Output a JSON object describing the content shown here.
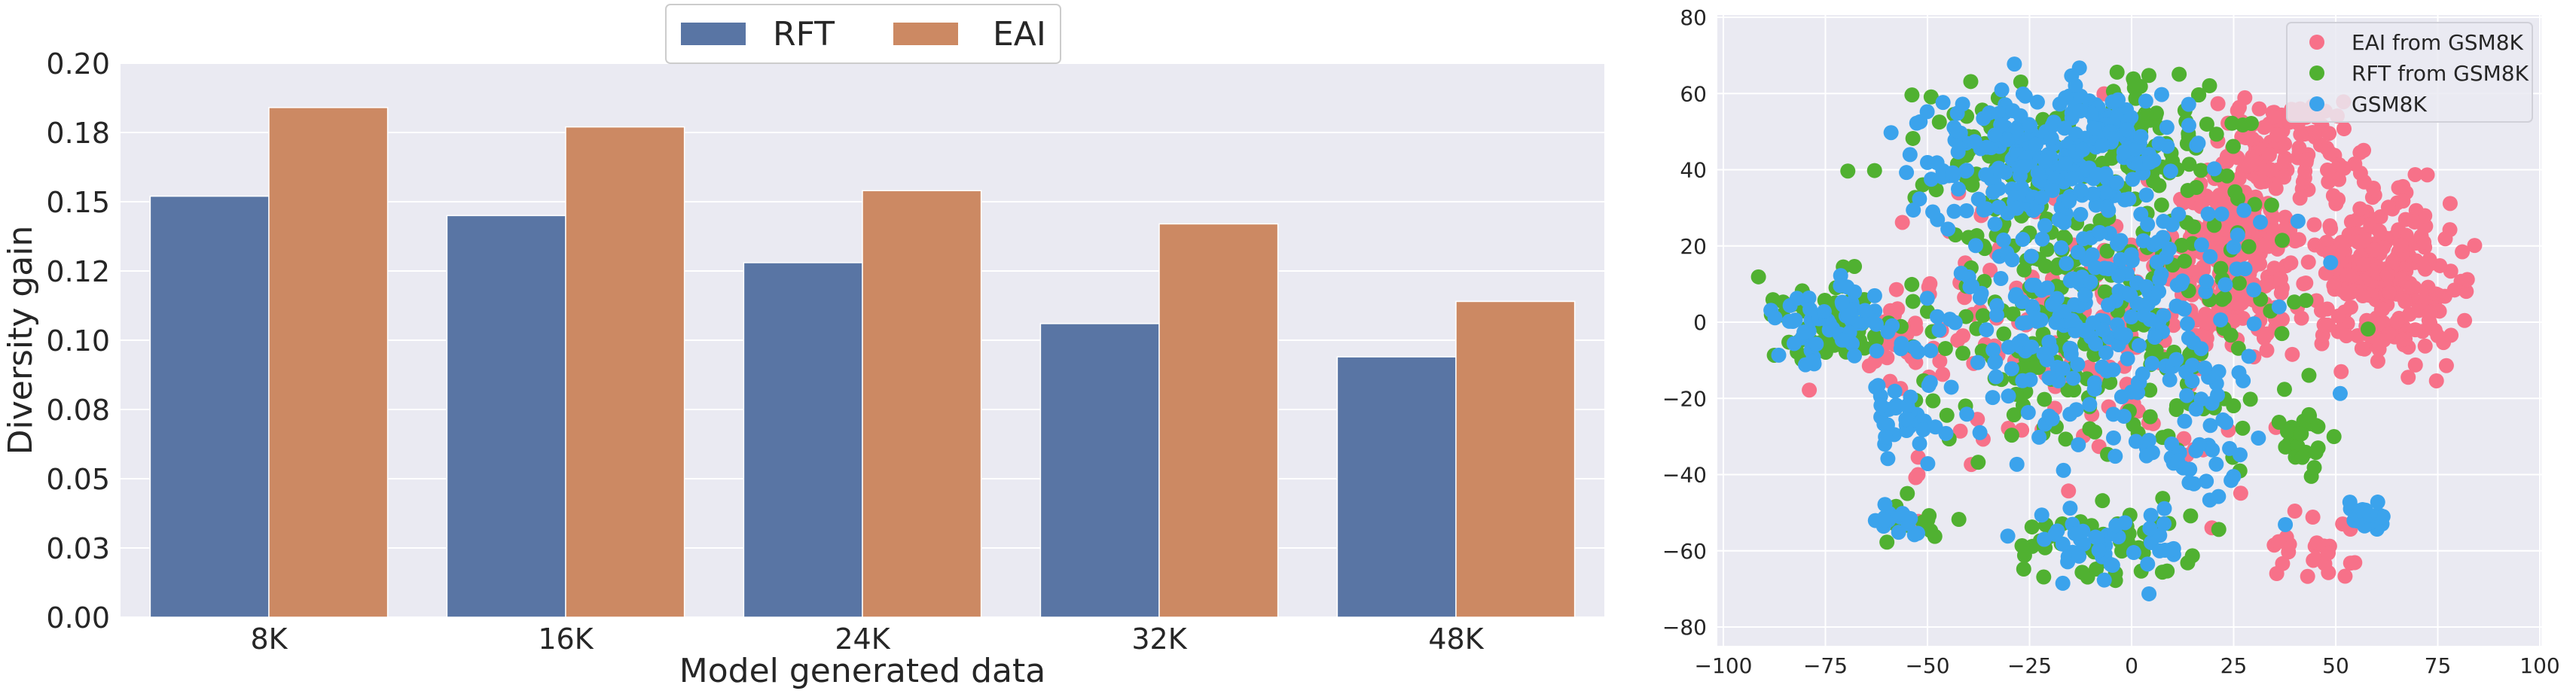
{
  "chart_data": [
    {
      "type": "bar",
      "xlabel": "Model generated data",
      "ylabel": "Diversity gain",
      "categories": [
        "8K",
        "16K",
        "24K",
        "32K",
        "48K"
      ],
      "series": [
        {
          "name": "RFT",
          "values": [
            0.152,
            0.145,
            0.128,
            0.106,
            0.094
          ]
        },
        {
          "name": "EAI",
          "values": [
            0.184,
            0.177,
            0.154,
            0.142,
            0.114
          ]
        }
      ],
      "ylim": [
        0,
        0.2
      ],
      "yticks": [
        0.0,
        0.025,
        0.05,
        0.075,
        0.1,
        0.125,
        0.15,
        0.175,
        0.2
      ],
      "ytick_labels": [
        "0.00",
        "0.03",
        "0.05",
        "0.08",
        "0.10",
        "0.12",
        "0.15",
        "0.18",
        "0.20"
      ],
      "legend_position": "top-center",
      "grid": true,
      "colors": {
        "RFT": "#5975a4",
        "EAI": "#cc8963",
        "background": "#eaeaf2",
        "grid": "#ffffff"
      }
    },
    {
      "type": "scatter",
      "xlim": [
        -100,
        100
      ],
      "ylim": [
        -80,
        80
      ],
      "xticks": [
        -100,
        -75,
        -50,
        -25,
        0,
        25,
        50,
        75,
        100
      ],
      "xtick_labels": [
        "−100",
        "−75",
        "−50",
        "−25",
        "0",
        "25",
        "50",
        "75",
        "100"
      ],
      "yticks": [
        -80,
        -60,
        -40,
        -20,
        0,
        20,
        40,
        60,
        80
      ],
      "ytick_labels": [
        "−80",
        "−60",
        "−40",
        "−20",
        "0",
        "20",
        "40",
        "60",
        "80"
      ],
      "legend_position": "top-right",
      "grid": true,
      "series": [
        {
          "name": "EAI from GSM8K",
          "color": "#f77189",
          "clusters": [
            [
              62,
              12,
              16,
              18,
              260
            ],
            [
              24,
              16,
              12,
              20,
              230
            ],
            [
              38,
              46,
              14,
              12,
              110
            ],
            [
              -10,
              0,
              40,
              34,
              170
            ],
            [
              -55,
              -5,
              18,
              14,
              35
            ],
            [
              48,
              -58,
              10,
              7,
              25
            ]
          ]
        },
        {
          "name": "RFT from GSM8K",
          "color": "#50b131",
          "clusters": [
            [
              -10,
              5,
              40,
              34,
              260
            ],
            [
              -75,
              0,
              14,
              10,
              55
            ],
            [
              -30,
              45,
              20,
              15,
              80
            ],
            [
              5,
              50,
              20,
              15,
              70
            ],
            [
              -5,
              -58,
              20,
              9,
              50
            ],
            [
              -55,
              -52,
              8,
              5,
              18
            ],
            [
              42,
              -30,
              8,
              10,
              22
            ]
          ]
        },
        {
          "name": "GSM8K",
          "color": "#3ba3ec",
          "clusters": [
            [
              -10,
              5,
              34,
              32,
              300
            ],
            [
              -30,
              45,
              18,
              14,
              120
            ],
            [
              -5,
              48,
              18,
              15,
              90
            ],
            [
              -75,
              0,
              11,
              9,
              60
            ],
            [
              -55,
              -25,
              7,
              7,
              30
            ],
            [
              -57,
              -52,
              5,
              4,
              18
            ],
            [
              58,
              -50,
              5,
              4,
              22
            ],
            [
              -5,
              -58,
              18,
              8,
              45
            ],
            [
              15,
              -38,
              12,
              8,
              25
            ]
          ]
        }
      ],
      "colors": {
        "background": "#eaeaf2",
        "grid": "#ffffff"
      }
    }
  ]
}
